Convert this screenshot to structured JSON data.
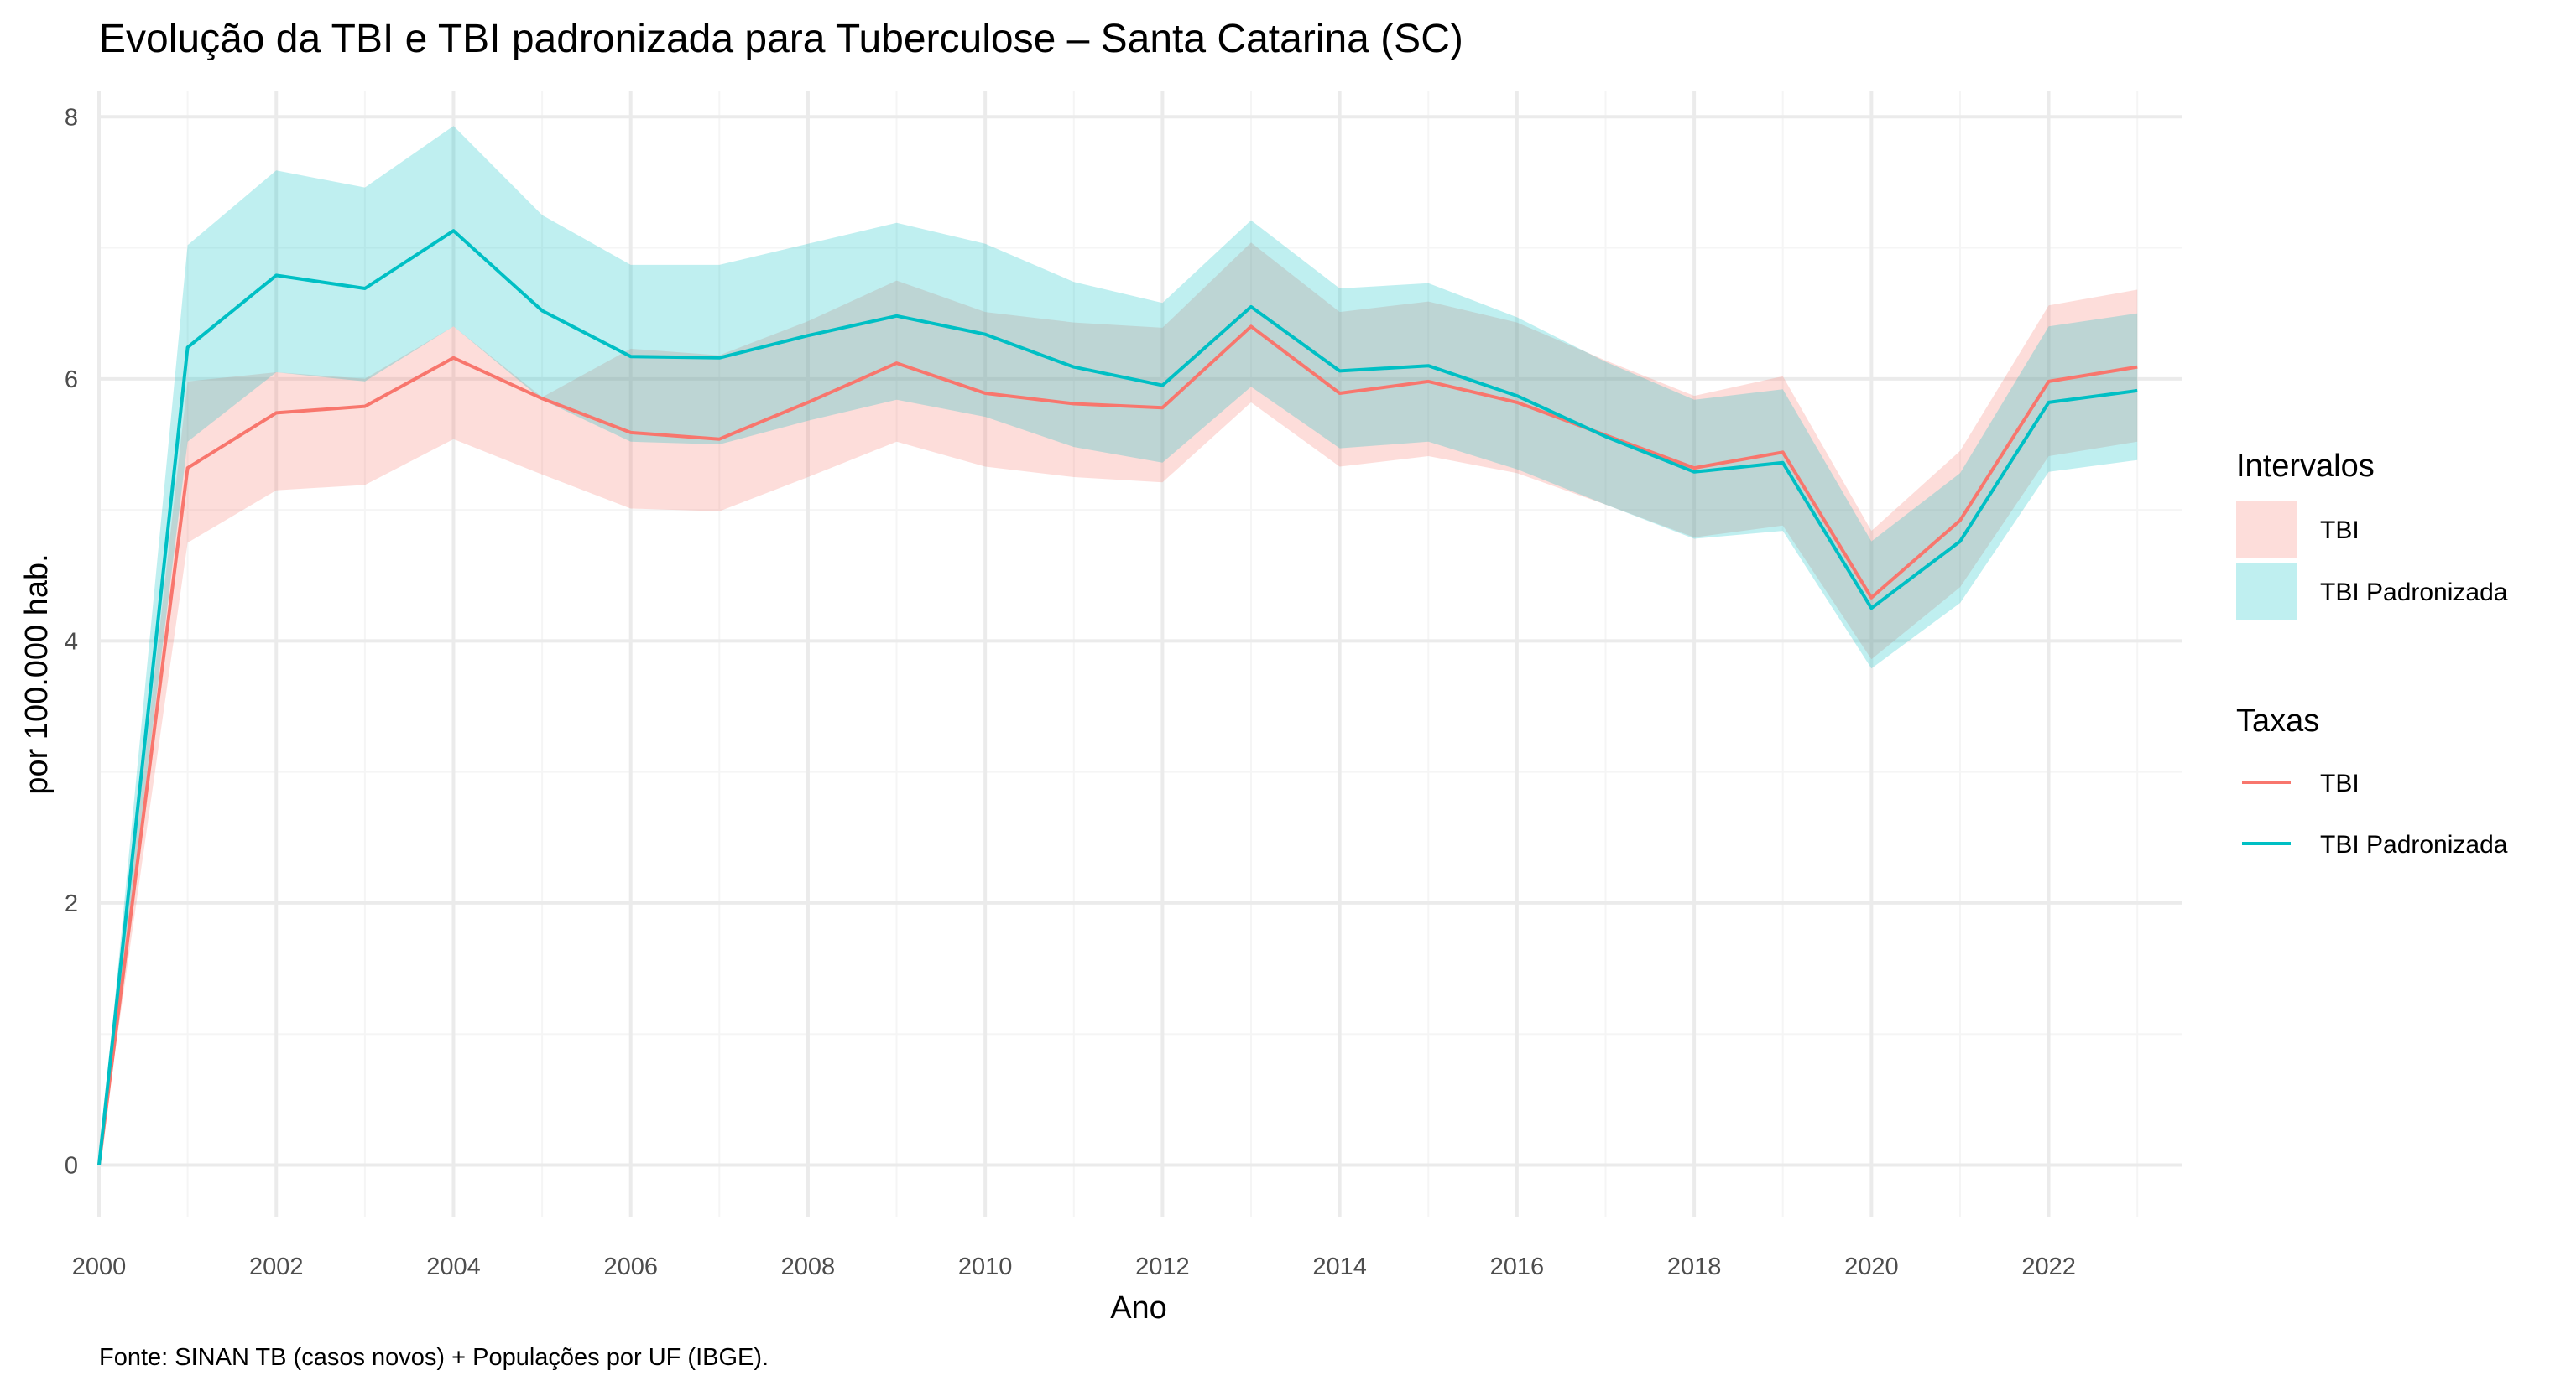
{
  "chart_data": {
    "type": "line",
    "title": "Evolução da TBI e TBI padronizada para Tuberculose – Santa Catarina (SC)",
    "xlabel": "Ano",
    "ylabel": "por 100.000 hab.",
    "caption": "Fonte: SINAN TB (casos novos) + Populações por UF (IBGE).",
    "xlim": [
      2000,
      2023.5
    ],
    "ylim": [
      -0.4,
      8.2
    ],
    "x_ticks": [
      2000,
      2002,
      2004,
      2006,
      2008,
      2010,
      2012,
      2014,
      2016,
      2018,
      2020,
      2022
    ],
    "y_ticks": [
      0,
      2,
      4,
      6,
      8
    ],
    "grid": true,
    "legend_position": "right",
    "x": [
      2000,
      2001,
      2002,
      2003,
      2004,
      2005,
      2006,
      2007,
      2008,
      2009,
      2010,
      2011,
      2012,
      2013,
      2014,
      2015,
      2016,
      2017,
      2018,
      2019,
      2020,
      2021,
      2022,
      2023
    ],
    "series": [
      {
        "name": "TBI",
        "color": "#F8766D",
        "values": [
          0.0,
          5.32,
          5.74,
          5.79,
          6.16,
          5.85,
          5.59,
          5.54,
          5.82,
          6.12,
          5.89,
          5.81,
          5.78,
          6.4,
          5.89,
          5.98,
          5.82,
          5.57,
          5.32,
          5.44,
          4.33,
          4.92,
          5.98,
          6.09
        ],
        "lower": [
          0.0,
          4.75,
          5.15,
          5.19,
          5.54,
          5.27,
          5.01,
          4.99,
          5.25,
          5.52,
          5.33,
          5.25,
          5.21,
          5.82,
          5.33,
          5.41,
          5.28,
          5.04,
          4.79,
          4.88,
          3.86,
          4.41,
          5.41,
          5.52
        ],
        "upper": [
          0.0,
          5.98,
          6.05,
          6.0,
          6.4,
          5.86,
          6.23,
          6.18,
          6.44,
          6.75,
          6.51,
          6.43,
          6.39,
          7.04,
          6.51,
          6.59,
          6.43,
          6.14,
          5.87,
          6.02,
          4.84,
          5.45,
          6.56,
          6.68
        ]
      },
      {
        "name": "TBI Padronizada",
        "color": "#00BFC4",
        "values": [
          0.0,
          6.24,
          6.79,
          6.69,
          7.13,
          6.52,
          6.17,
          6.16,
          6.33,
          6.48,
          6.34,
          6.09,
          5.95,
          6.55,
          6.06,
          6.1,
          5.87,
          5.56,
          5.29,
          5.36,
          4.25,
          4.76,
          5.82,
          5.91
        ],
        "lower": [
          0.0,
          5.52,
          6.05,
          5.98,
          6.4,
          5.84,
          5.52,
          5.5,
          5.68,
          5.84,
          5.71,
          5.48,
          5.36,
          5.94,
          5.47,
          5.52,
          5.31,
          5.04,
          4.78,
          4.84,
          3.79,
          4.29,
          5.29,
          5.38
        ],
        "upper": [
          0.0,
          7.02,
          7.59,
          7.46,
          7.93,
          7.25,
          6.87,
          6.87,
          7.03,
          7.19,
          7.03,
          6.74,
          6.58,
          7.21,
          6.69,
          6.73,
          6.47,
          6.13,
          5.84,
          5.92,
          4.76,
          5.28,
          6.4,
          6.5
        ]
      }
    ],
    "legend": {
      "intervals_title": "Intervalos",
      "rates_title": "Taxas",
      "items": [
        "TBI",
        "TBI Padronizada"
      ]
    },
    "colors": {
      "tbi": "#F8766D",
      "tbi_padronizada": "#00BFC4",
      "tbi_band": "#F8766D",
      "tbi_padronizada_band": "#00BFC4",
      "grid_major": "#EBEBEB",
      "grid_minor": "#F5F5F5",
      "tick_text": "#4D4D4D"
    }
  }
}
